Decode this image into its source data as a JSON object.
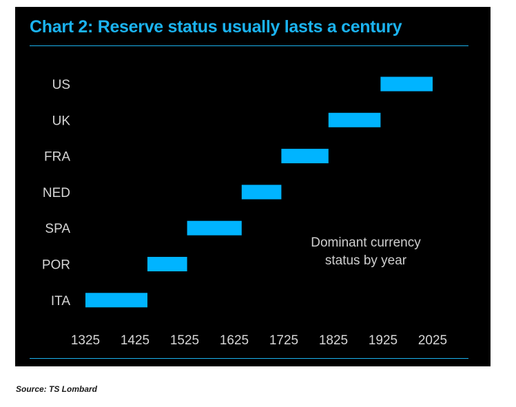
{
  "colors": {
    "background": "#000000",
    "accent": "#1bb3f0",
    "bar": "#00b4ff",
    "tick_text": "#d6d6d6"
  },
  "chart_data": {
    "type": "bar",
    "orientation": "horizontal",
    "title": "Chart 2: Reserve status usually lasts a century",
    "annotation": [
      "Dominant currency",
      "status by year"
    ],
    "categories": [
      "US",
      "UK",
      "FRA",
      "NED",
      "SPA",
      "POR",
      "ITA"
    ],
    "series": [
      {
        "start": [
          1920,
          1815,
          1720,
          1640,
          1530,
          1450,
          1325
        ],
        "end": [
          2025,
          1920,
          1815,
          1720,
          1640,
          1530,
          1450
        ]
      }
    ],
    "x_ticks": [
      "1325",
      "1425",
      "1525",
      "1625",
      "1725",
      "1825",
      "1925",
      "2025"
    ],
    "xlim": [
      1325,
      2025
    ],
    "grid": false,
    "legend": "none"
  },
  "source": "Source: TS Lombard"
}
